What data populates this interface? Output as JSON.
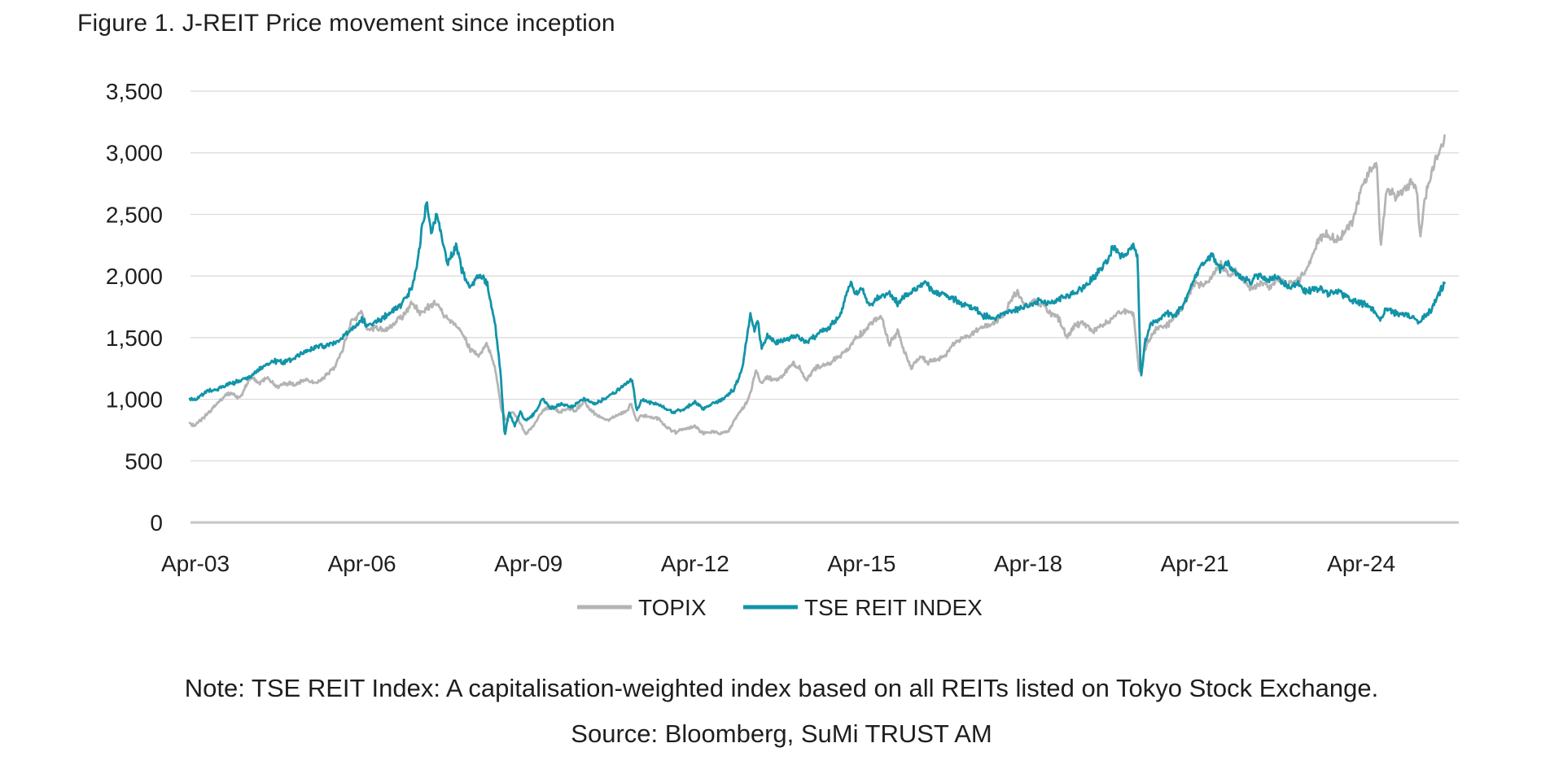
{
  "figure": {
    "title": "Figure 1. J-REIT Price movement since inception",
    "note": "Note: TSE REIT Index: A capitalisation-weighted index based on all REITs listed on Tokyo Stock Exchange.",
    "source": "Source: Bloomberg, SuMi TRUST AM"
  },
  "colors": {
    "text": "#1e1e1e",
    "gridline": "#d9d9d9",
    "axis_baseline": "#c6c6c6",
    "topix": "#b4b4b4",
    "tse_reit": "#1294a8"
  },
  "chart_data": {
    "type": "line",
    "title": "Figure 1. J-REIT Price movement since inception",
    "xlabel": "",
    "ylabel": "",
    "grid": "horizontal",
    "x_axis": {
      "tick_labels": [
        "Apr-03",
        "Apr-06",
        "Apr-09",
        "Apr-12",
        "Apr-15",
        "Apr-18",
        "Apr-21",
        "Apr-24"
      ],
      "tick_interval_years": 3,
      "x_unit": "years since Apr-2003",
      "x_range": [
        -0.1,
        22.5
      ]
    },
    "y_axis": {
      "ticks": [
        0,
        500,
        1000,
        1500,
        2000,
        2500,
        3000,
        3500
      ],
      "tick_labels": [
        "0",
        "500",
        "1,000",
        "1,500",
        "2,000",
        "2,500",
        "3,000",
        "3,500"
      ],
      "range": [
        0,
        3500
      ]
    },
    "legend": {
      "position": "bottom-center",
      "entries": [
        {
          "label": "TOPIX",
          "color": "#b4b4b4"
        },
        {
          "label": "TSE REIT INDEX",
          "color": "#1294a8"
        }
      ]
    },
    "series": [
      {
        "name": "TOPIX",
        "color": "#b4b4b4",
        "points": [
          [
            -0.1,
            800
          ],
          [
            0,
            790
          ],
          [
            0.15,
            850
          ],
          [
            0.3,
            920
          ],
          [
            0.5,
            1020
          ],
          [
            0.65,
            1050
          ],
          [
            0.8,
            1010
          ],
          [
            1,
            1180
          ],
          [
            1.15,
            1130
          ],
          [
            1.3,
            1180
          ],
          [
            1.45,
            1100
          ],
          [
            1.6,
            1130
          ],
          [
            1.8,
            1120
          ],
          [
            2,
            1160
          ],
          [
            2.15,
            1130
          ],
          [
            2.3,
            1170
          ],
          [
            2.5,
            1250
          ],
          [
            2.65,
            1400
          ],
          [
            2.8,
            1630
          ],
          [
            3,
            1700
          ],
          [
            3.1,
            1550
          ],
          [
            3.25,
            1590
          ],
          [
            3.4,
            1550
          ],
          [
            3.6,
            1620
          ],
          [
            3.75,
            1680
          ],
          [
            3.9,
            1790
          ],
          [
            4.05,
            1700
          ],
          [
            4.2,
            1750
          ],
          [
            4.35,
            1790
          ],
          [
            4.5,
            1670
          ],
          [
            4.65,
            1620
          ],
          [
            4.8,
            1550
          ],
          [
            4.95,
            1400
          ],
          [
            5.1,
            1350
          ],
          [
            5.25,
            1450
          ],
          [
            5.4,
            1250
          ],
          [
            5.52,
            900
          ],
          [
            5.6,
            830
          ],
          [
            5.7,
            900
          ],
          [
            5.8,
            850
          ],
          [
            5.95,
            720
          ],
          [
            6.1,
            790
          ],
          [
            6.25,
            900
          ],
          [
            6.4,
            950
          ],
          [
            6.55,
            900
          ],
          [
            6.7,
            920
          ],
          [
            6.85,
            910
          ],
          [
            7,
            980
          ],
          [
            7.15,
            900
          ],
          [
            7.3,
            850
          ],
          [
            7.45,
            830
          ],
          [
            7.6,
            870
          ],
          [
            7.75,
            900
          ],
          [
            7.85,
            960
          ],
          [
            7.95,
            830
          ],
          [
            8.05,
            870
          ],
          [
            8.2,
            850
          ],
          [
            8.35,
            840
          ],
          [
            8.5,
            770
          ],
          [
            8.65,
            730
          ],
          [
            8.8,
            760
          ],
          [
            9,
            780
          ],
          [
            9.15,
            720
          ],
          [
            9.3,
            740
          ],
          [
            9.45,
            720
          ],
          [
            9.6,
            740
          ],
          [
            9.75,
            860
          ],
          [
            9.9,
            950
          ],
          [
            10,
            1050
          ],
          [
            10.1,
            1250
          ],
          [
            10.18,
            1130
          ],
          [
            10.3,
            1180
          ],
          [
            10.45,
            1150
          ],
          [
            10.6,
            1200
          ],
          [
            10.75,
            1290
          ],
          [
            10.9,
            1250
          ],
          [
            11,
            1150
          ],
          [
            11.15,
            1250
          ],
          [
            11.3,
            1280
          ],
          [
            11.45,
            1300
          ],
          [
            11.6,
            1350
          ],
          [
            11.75,
            1400
          ],
          [
            11.9,
            1500
          ],
          [
            12.05,
            1550
          ],
          [
            12.2,
            1630
          ],
          [
            12.35,
            1680
          ],
          [
            12.5,
            1440
          ],
          [
            12.65,
            1550
          ],
          [
            12.8,
            1350
          ],
          [
            12.9,
            1250
          ],
          [
            13.05,
            1350
          ],
          [
            13.2,
            1300
          ],
          [
            13.35,
            1320
          ],
          [
            13.5,
            1350
          ],
          [
            13.65,
            1450
          ],
          [
            13.8,
            1500
          ],
          [
            13.95,
            1520
          ],
          [
            14.1,
            1560
          ],
          [
            14.25,
            1600
          ],
          [
            14.4,
            1620
          ],
          [
            14.55,
            1680
          ],
          [
            14.7,
            1800
          ],
          [
            14.8,
            1880
          ],
          [
            14.95,
            1750
          ],
          [
            15.1,
            1800
          ],
          [
            15.25,
            1780
          ],
          [
            15.4,
            1700
          ],
          [
            15.55,
            1650
          ],
          [
            15.7,
            1500
          ],
          [
            15.85,
            1600
          ],
          [
            16,
            1620
          ],
          [
            16.15,
            1550
          ],
          [
            16.3,
            1600
          ],
          [
            16.45,
            1620
          ],
          [
            16.6,
            1700
          ],
          [
            16.75,
            1720
          ],
          [
            16.9,
            1690
          ],
          [
            17,
            1200
          ],
          [
            17.1,
            1400
          ],
          [
            17.25,
            1550
          ],
          [
            17.4,
            1580
          ],
          [
            17.55,
            1620
          ],
          [
            17.7,
            1700
          ],
          [
            17.85,
            1800
          ],
          [
            18,
            1950
          ],
          [
            18.15,
            1920
          ],
          [
            18.3,
            1980
          ],
          [
            18.45,
            2100
          ],
          [
            18.6,
            2000
          ],
          [
            18.75,
            2050
          ],
          [
            18.9,
            1950
          ],
          [
            19.05,
            1880
          ],
          [
            19.2,
            1950
          ],
          [
            19.35,
            1900
          ],
          [
            19.5,
            1980
          ],
          [
            19.65,
            1930
          ],
          [
            19.8,
            1950
          ],
          [
            19.95,
            2000
          ],
          [
            20.1,
            2150
          ],
          [
            20.25,
            2300
          ],
          [
            20.4,
            2350
          ],
          [
            20.55,
            2280
          ],
          [
            20.7,
            2350
          ],
          [
            20.85,
            2450
          ],
          [
            21,
            2700
          ],
          [
            21.15,
            2850
          ],
          [
            21.28,
            2900
          ],
          [
            21.35,
            2220
          ],
          [
            21.45,
            2700
          ],
          [
            21.6,
            2650
          ],
          [
            21.75,
            2700
          ],
          [
            21.9,
            2750
          ],
          [
            22,
            2700
          ],
          [
            22.06,
            2300
          ],
          [
            22.15,
            2650
          ],
          [
            22.25,
            2800
          ],
          [
            22.35,
            2950
          ],
          [
            22.45,
            3050
          ],
          [
            22.5,
            3100
          ]
        ]
      },
      {
        "name": "TSE REIT INDEX",
        "color": "#1294a8",
        "points": [
          [
            -0.1,
            995
          ],
          [
            0,
            1000
          ],
          [
            0.2,
            1060
          ],
          [
            0.4,
            1085
          ],
          [
            0.6,
            1120
          ],
          [
            0.8,
            1150
          ],
          [
            1,
            1190
          ],
          [
            1.2,
            1260
          ],
          [
            1.4,
            1310
          ],
          [
            1.6,
            1300
          ],
          [
            1.8,
            1340
          ],
          [
            2,
            1390
          ],
          [
            2.2,
            1430
          ],
          [
            2.4,
            1440
          ],
          [
            2.6,
            1480
          ],
          [
            2.8,
            1560
          ],
          [
            3,
            1650
          ],
          [
            3.1,
            1600
          ],
          [
            3.3,
            1640
          ],
          [
            3.5,
            1700
          ],
          [
            3.7,
            1760
          ],
          [
            3.9,
            1900
          ],
          [
            4,
            2100
          ],
          [
            4.1,
            2450
          ],
          [
            4.17,
            2610
          ],
          [
            4.25,
            2350
          ],
          [
            4.35,
            2500
          ],
          [
            4.45,
            2300
          ],
          [
            4.55,
            2100
          ],
          [
            4.7,
            2250
          ],
          [
            4.8,
            2050
          ],
          [
            4.95,
            1900
          ],
          [
            5.1,
            2000
          ],
          [
            5.25,
            1950
          ],
          [
            5.4,
            1600
          ],
          [
            5.5,
            1200
          ],
          [
            5.57,
            700
          ],
          [
            5.65,
            900
          ],
          [
            5.75,
            780
          ],
          [
            5.85,
            900
          ],
          [
            5.95,
            820
          ],
          [
            6.1,
            880
          ],
          [
            6.25,
            1000
          ],
          [
            6.4,
            930
          ],
          [
            6.6,
            960
          ],
          [
            6.8,
            940
          ],
          [
            7,
            1000
          ],
          [
            7.2,
            960
          ],
          [
            7.4,
            1010
          ],
          [
            7.6,
            1070
          ],
          [
            7.75,
            1130
          ],
          [
            7.87,
            1150
          ],
          [
            7.95,
            900
          ],
          [
            8.05,
            1000
          ],
          [
            8.2,
            970
          ],
          [
            8.4,
            950
          ],
          [
            8.6,
            890
          ],
          [
            8.8,
            920
          ],
          [
            9,
            980
          ],
          [
            9.15,
            920
          ],
          [
            9.3,
            960
          ],
          [
            9.5,
            1000
          ],
          [
            9.7,
            1080
          ],
          [
            9.85,
            1250
          ],
          [
            10,
            1700
          ],
          [
            10.07,
            1560
          ],
          [
            10.13,
            1650
          ],
          [
            10.2,
            1400
          ],
          [
            10.3,
            1520
          ],
          [
            10.45,
            1450
          ],
          [
            10.6,
            1480
          ],
          [
            10.8,
            1520
          ],
          [
            11,
            1460
          ],
          [
            11.2,
            1520
          ],
          [
            11.4,
            1580
          ],
          [
            11.6,
            1670
          ],
          [
            11.8,
            1950
          ],
          [
            11.9,
            1850
          ],
          [
            12,
            1900
          ],
          [
            12.15,
            1750
          ],
          [
            12.3,
            1820
          ],
          [
            12.5,
            1870
          ],
          [
            12.65,
            1780
          ],
          [
            12.8,
            1850
          ],
          [
            13,
            1900
          ],
          [
            13.15,
            1950
          ],
          [
            13.3,
            1870
          ],
          [
            13.5,
            1850
          ],
          [
            13.7,
            1800
          ],
          [
            13.85,
            1760
          ],
          [
            14,
            1750
          ],
          [
            14.2,
            1680
          ],
          [
            14.4,
            1660
          ],
          [
            14.6,
            1700
          ],
          [
            14.8,
            1730
          ],
          [
            15,
            1760
          ],
          [
            15.2,
            1800
          ],
          [
            15.4,
            1780
          ],
          [
            15.6,
            1830
          ],
          [
            15.8,
            1860
          ],
          [
            16,
            1900
          ],
          [
            16.2,
            2000
          ],
          [
            16.4,
            2100
          ],
          [
            16.55,
            2250
          ],
          [
            16.65,
            2150
          ],
          [
            16.8,
            2200
          ],
          [
            16.9,
            2250
          ],
          [
            16.97,
            2150
          ],
          [
            17.03,
            1145
          ],
          [
            17.1,
            1450
          ],
          [
            17.2,
            1600
          ],
          [
            17.35,
            1650
          ],
          [
            17.5,
            1700
          ],
          [
            17.65,
            1680
          ],
          [
            17.8,
            1760
          ],
          [
            18,
            2000
          ],
          [
            18.15,
            2100
          ],
          [
            18.3,
            2180
          ],
          [
            18.45,
            2050
          ],
          [
            18.6,
            2100
          ],
          [
            18.8,
            2000
          ],
          [
            19,
            1950
          ],
          [
            19.15,
            2010
          ],
          [
            19.3,
            1960
          ],
          [
            19.5,
            1990
          ],
          [
            19.7,
            1900
          ],
          [
            19.85,
            1950
          ],
          [
            20,
            1870
          ],
          [
            20.2,
            1900
          ],
          [
            20.4,
            1860
          ],
          [
            20.6,
            1880
          ],
          [
            20.8,
            1800
          ],
          [
            21,
            1780
          ],
          [
            21.2,
            1740
          ],
          [
            21.33,
            1640
          ],
          [
            21.45,
            1740
          ],
          [
            21.6,
            1700
          ],
          [
            21.8,
            1680
          ],
          [
            21.95,
            1660
          ],
          [
            22.05,
            1620
          ],
          [
            22.15,
            1680
          ],
          [
            22.25,
            1720
          ],
          [
            22.35,
            1800
          ],
          [
            22.45,
            1900
          ],
          [
            22.5,
            1935
          ]
        ]
      }
    ]
  }
}
